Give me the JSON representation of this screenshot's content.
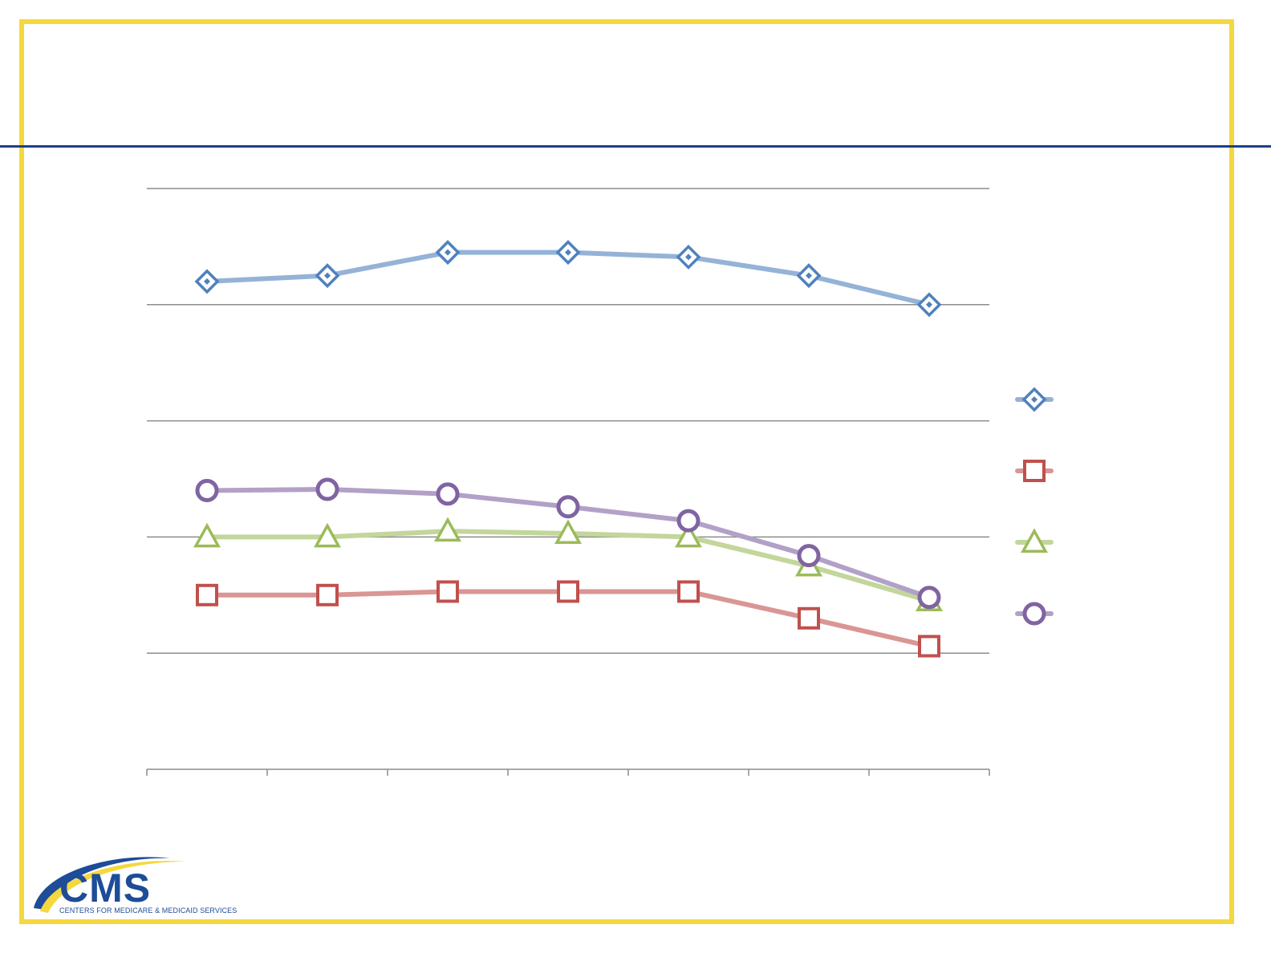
{
  "logo": {
    "name": "CMS",
    "tagline": "CENTERS FOR MEDICARE & MEDICAID SERVICES"
  },
  "colors": {
    "frame": "#f5d73e",
    "rule": "#1f3f8a",
    "brand": "#1d4c98"
  },
  "chart_data": {
    "type": "line",
    "title": "",
    "xlabel": "",
    "ylabel": "",
    "categories": [
      "",
      "",
      "",
      "",
      "",
      "",
      ""
    ],
    "ylim": [
      0,
      5
    ],
    "grid": true,
    "legend_position": "right",
    "series": [
      {
        "color": "#4f81bd",
        "line_color": "#95b3d7",
        "marker": "diamond",
        "values": [
          4.2,
          4.25,
          4.45,
          4.45,
          4.41,
          4.25,
          4.0
        ]
      },
      {
        "color": "#c0504d",
        "line_color": "#d99694",
        "marker": "square",
        "values": [
          1.5,
          1.5,
          1.53,
          1.53,
          1.53,
          1.3,
          1.06
        ]
      },
      {
        "color": "#9bbb59",
        "line_color": "#c3d69b",
        "marker": "triangle",
        "values": [
          2.0,
          2.0,
          2.05,
          2.03,
          2.0,
          1.75,
          1.45
        ]
      },
      {
        "color": "#8064a2",
        "line_color": "#b2a1c7",
        "marker": "circle",
        "values": [
          2.4,
          2.41,
          2.37,
          2.26,
          2.14,
          1.84,
          1.48
        ]
      }
    ]
  }
}
